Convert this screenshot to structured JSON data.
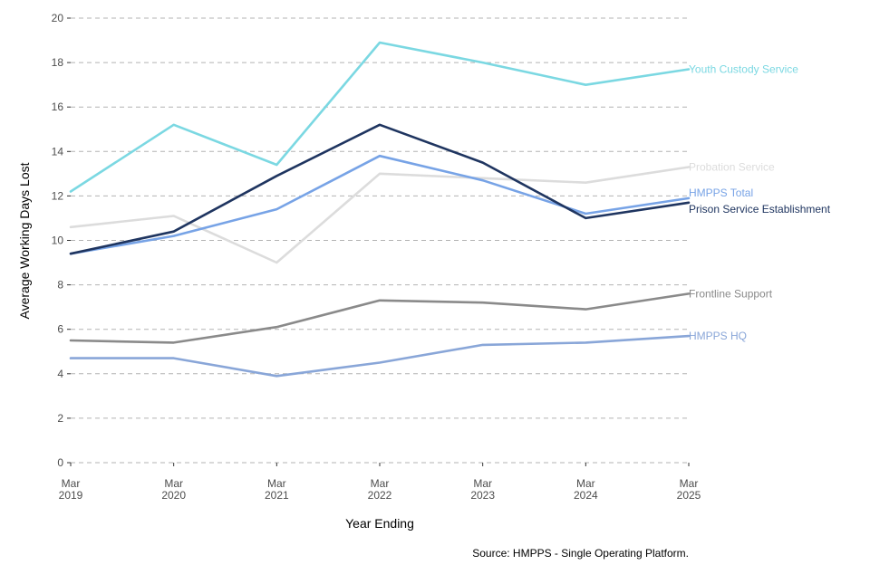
{
  "chart_data": {
    "type": "line",
    "xlabel": "Year Ending",
    "ylabel": "Average Working Days Lost",
    "caption": "Source: HMPPS - Single Operating Platform.",
    "categories": [
      [
        "Mar",
        "2019"
      ],
      [
        "Mar",
        "2020"
      ],
      [
        "Mar",
        "2021"
      ],
      [
        "Mar",
        "2022"
      ],
      [
        "Mar",
        "2023"
      ],
      [
        "Mar",
        "2024"
      ],
      [
        "Mar",
        "2025"
      ]
    ],
    "ylim": [
      0,
      20
    ],
    "yticks": [
      0,
      2,
      4,
      6,
      8,
      10,
      12,
      14,
      16,
      18,
      20
    ],
    "grid": true,
    "legend": "direct labels at line ends",
    "series": [
      {
        "name": "Probation Service",
        "color": "#dcdcdc",
        "values": [
          10.6,
          11.1,
          9.0,
          13.0,
          12.8,
          12.6,
          13.3
        ]
      },
      {
        "name": "Frontline Support",
        "color": "#8a8a8a",
        "values": [
          5.5,
          5.4,
          6.1,
          7.3,
          7.2,
          6.9,
          7.6
        ]
      },
      {
        "name": "HMPPS HQ",
        "color": "#89a6d8",
        "values": [
          4.7,
          4.7,
          3.9,
          4.5,
          5.3,
          5.4,
          5.7
        ]
      },
      {
        "name": "HMPPS Total",
        "color": "#77a3e6",
        "values": [
          9.4,
          10.2,
          11.4,
          13.8,
          12.7,
          11.2,
          11.9
        ]
      },
      {
        "name": "Prison Service Establishment",
        "color": "#1f3560",
        "values": [
          9.4,
          10.4,
          12.9,
          15.2,
          13.5,
          11.0,
          11.7
        ]
      },
      {
        "name": "Youth Custody Service",
        "color": "#7bd8e2",
        "values": [
          12.2,
          15.2,
          13.4,
          18.9,
          18.0,
          17.0,
          17.7
        ]
      }
    ]
  }
}
